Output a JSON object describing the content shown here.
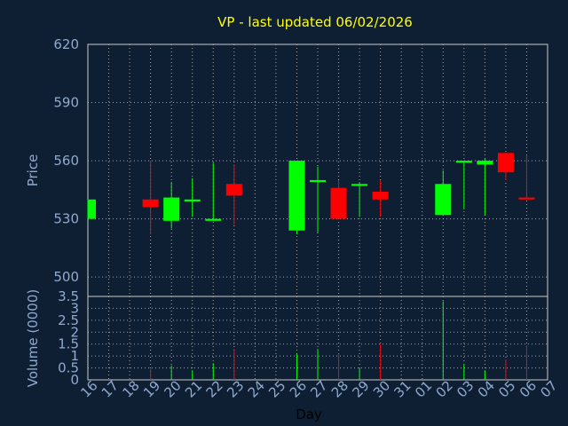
{
  "title": "VP - last updated 06/02/2026",
  "colors": {
    "background": "#0f1f33",
    "title": "#ffff00",
    "axis_text": "#8faad0",
    "grid": "#c8c8c8",
    "up": "#00ff00",
    "down": "#ff0000"
  },
  "chart_data": [
    {
      "type": "candlestick",
      "ylabel": "Price",
      "ylim": [
        490,
        620
      ],
      "yticks": [
        "620",
        "590",
        "560",
        "530",
        "500"
      ],
      "ytick_values": [
        620,
        590,
        560,
        530,
        500
      ],
      "grid": true,
      "days": [
        "16",
        "17",
        "18",
        "19",
        "20",
        "21",
        "22",
        "23",
        "24",
        "25",
        "26",
        "27",
        "28",
        "29",
        "30",
        "31",
        "01",
        "02",
        "03",
        "04",
        "05",
        "06",
        "07"
      ],
      "candles": [
        {
          "day": "16",
          "open": 530,
          "close": 540,
          "high": 540,
          "low": 530
        },
        {
          "day": "19",
          "open": 540,
          "close": 536,
          "high": 560,
          "low": 522
        },
        {
          "day": "20",
          "open": 529,
          "close": 541,
          "high": 549,
          "low": 525
        },
        {
          "day": "21",
          "open": 539,
          "close": 540,
          "high": 551,
          "low": 531
        },
        {
          "day": "22",
          "open": 529,
          "close": 530,
          "high": 559,
          "low": 529
        },
        {
          "day": "23",
          "open": 548,
          "close": 542,
          "high": 558,
          "low": 527
        },
        {
          "day": "26",
          "open": 524,
          "close": 560,
          "high": 560,
          "low": 522
        },
        {
          "day": "27",
          "open": 549,
          "close": 550,
          "high": 557,
          "low": 523
        },
        {
          "day": "28",
          "open": 546,
          "close": 530,
          "high": 550,
          "low": 530
        },
        {
          "day": "29",
          "open": 547,
          "close": 548,
          "high": 549,
          "low": 531
        },
        {
          "day": "30",
          "open": 544,
          "close": 540,
          "high": 550,
          "low": 531
        },
        {
          "day": "02",
          "open": 532,
          "close": 548,
          "high": 555,
          "low": 532
        },
        {
          "day": "03",
          "open": 559,
          "close": 560,
          "high": 560,
          "low": 535
        },
        {
          "day": "04",
          "open": 558,
          "close": 560,
          "high": 561,
          "low": 532
        },
        {
          "day": "05",
          "open": 564,
          "close": 554,
          "high": 564,
          "low": 550
        },
        {
          "day": "06",
          "open": 541,
          "close": 540,
          "high": 563,
          "low": 540
        }
      ]
    },
    {
      "type": "bar",
      "ylabel": "Volume (0000)",
      "xlabel": "Day",
      "ylim": [
        0,
        3.5
      ],
      "yticks": [
        "3.5",
        "3",
        "2.5",
        "2",
        "1.5",
        "1",
        "0.5",
        "0"
      ],
      "ytick_values": [
        3.5,
        3,
        2.5,
        2,
        1.5,
        1,
        0.5,
        0
      ],
      "grid": true,
      "bars": [
        {
          "day": "16",
          "value": 0.0,
          "dir": "up"
        },
        {
          "day": "19",
          "value": 0.45,
          "dir": "down"
        },
        {
          "day": "20",
          "value": 0.6,
          "dir": "up"
        },
        {
          "day": "21",
          "value": 0.4,
          "dir": "up"
        },
        {
          "day": "22",
          "value": 0.7,
          "dir": "up"
        },
        {
          "day": "23",
          "value": 1.3,
          "dir": "down"
        },
        {
          "day": "26",
          "value": 1.1,
          "dir": "up"
        },
        {
          "day": "27",
          "value": 1.3,
          "dir": "up"
        },
        {
          "day": "28",
          "value": 1.1,
          "dir": "down"
        },
        {
          "day": "29",
          "value": 0.5,
          "dir": "up"
        },
        {
          "day": "30",
          "value": 1.5,
          "dir": "down"
        },
        {
          "day": "02",
          "value": 3.3,
          "dir": "up"
        },
        {
          "day": "03",
          "value": 0.65,
          "dir": "up"
        },
        {
          "day": "04",
          "value": 0.4,
          "dir": "up"
        },
        {
          "day": "05",
          "value": 0.85,
          "dir": "down"
        },
        {
          "day": "06",
          "value": 1.45,
          "dir": "down"
        }
      ]
    }
  ]
}
